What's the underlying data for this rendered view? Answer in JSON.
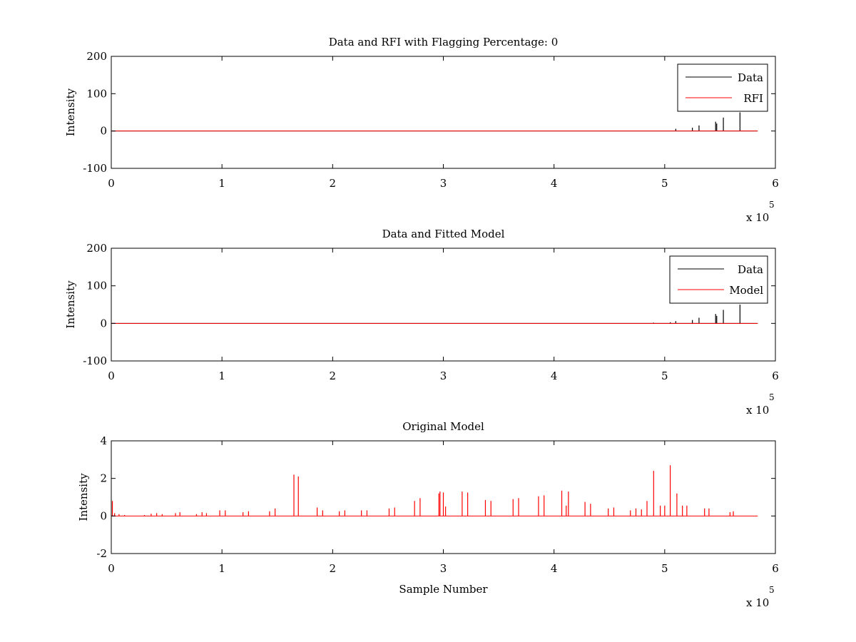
{
  "figure": {
    "background": "#ffffff"
  },
  "chart_data": [
    {
      "type": "line",
      "title": "Data and RFI with Flagging Percentage: 0",
      "xlabel": "",
      "ylabel": "Intensity",
      "xlim": [
        0,
        6
      ],
      "ylim": [
        -100,
        200
      ],
      "xticks": [
        "0",
        "1",
        "2",
        "3",
        "4",
        "5",
        "6"
      ],
      "yticks": [
        "-100",
        "0",
        "100",
        "200"
      ],
      "x_multiplier": {
        "base": "x 10",
        "exponent": "5"
      },
      "x_extent": [
        0,
        5.84
      ],
      "grid": false,
      "legend": "top-right",
      "series": [
        {
          "name": "Data",
          "color": "#000000",
          "baseline": 0,
          "spikes": [
            [
              5.1,
              6
            ],
            [
              5.25,
              9
            ],
            [
              5.31,
              15
            ],
            [
              5.46,
              25
            ],
            [
              5.47,
              20
            ],
            [
              5.53,
              36
            ],
            [
              5.68,
              50
            ]
          ]
        },
        {
          "name": "RFI",
          "color": "#ff0000",
          "baseline": 0,
          "spikes": []
        }
      ]
    },
    {
      "type": "line",
      "title": "Data and Fitted Model",
      "xlabel": "",
      "ylabel": "Intensity",
      "xlim": [
        0,
        6
      ],
      "ylim": [
        -100,
        200
      ],
      "xticks": [
        "0",
        "1",
        "2",
        "3",
        "4",
        "5",
        "6"
      ],
      "yticks": [
        "-100",
        "0",
        "100",
        "200"
      ],
      "x_multiplier": {
        "base": "x 10",
        "exponent": "5"
      },
      "x_extent": [
        0,
        5.84
      ],
      "grid": false,
      "legend": "top-right",
      "series": [
        {
          "name": "Data",
          "color": "#000000",
          "baseline": 0,
          "spikes": [
            [
              4.9,
              2
            ],
            [
              5.05,
              3
            ],
            [
              5.1,
              6
            ],
            [
              5.25,
              9
            ],
            [
              5.31,
              15
            ],
            [
              5.46,
              25
            ],
            [
              5.47,
              20
            ],
            [
              5.53,
              36
            ],
            [
              5.68,
              50
            ]
          ]
        },
        {
          "name": "Model",
          "color": "#ff0000",
          "baseline": 0,
          "spikes": []
        }
      ]
    },
    {
      "type": "line",
      "title": "Original Model",
      "xlabel": "Sample Number",
      "ylabel": "Intensity",
      "xlim": [
        0,
        6
      ],
      "ylim": [
        -2,
        4
      ],
      "xticks": [
        "0",
        "1",
        "2",
        "3",
        "4",
        "5",
        "6"
      ],
      "yticks": [
        "-2",
        "0",
        "2",
        "4"
      ],
      "x_multiplier": {
        "base": "x 10",
        "exponent": "5"
      },
      "x_extent": [
        0,
        5.84
      ],
      "grid": false,
      "series": [
        {
          "color": "#ff0000",
          "baseline": 0,
          "spikes": [
            [
              0.01,
              0.8
            ],
            [
              0.03,
              0.15
            ],
            [
              0.07,
              0.1
            ],
            [
              0.12,
              0.05
            ],
            [
              0.3,
              0.05
            ],
            [
              0.36,
              0.12
            ],
            [
              0.41,
              0.15
            ],
            [
              0.46,
              0.1
            ],
            [
              0.58,
              0.15
            ],
            [
              0.62,
              0.2
            ],
            [
              0.77,
              0.1
            ],
            [
              0.82,
              0.2
            ],
            [
              0.86,
              0.15
            ],
            [
              0.98,
              0.3
            ],
            [
              1.03,
              0.3
            ],
            [
              1.19,
              0.2
            ],
            [
              1.24,
              0.25
            ],
            [
              1.43,
              0.25
            ],
            [
              1.48,
              0.4
            ],
            [
              1.65,
              2.2
            ],
            [
              1.69,
              2.1
            ],
            [
              1.86,
              0.45
            ],
            [
              1.91,
              0.3
            ],
            [
              2.06,
              0.25
            ],
            [
              2.11,
              0.3
            ],
            [
              2.26,
              0.3
            ],
            [
              2.31,
              0.3
            ],
            [
              2.51,
              0.4
            ],
            [
              2.56,
              0.45
            ],
            [
              2.74,
              0.8
            ],
            [
              2.79,
              0.95
            ],
            [
              2.96,
              1.2
            ],
            [
              2.97,
              1.3
            ],
            [
              3.0,
              1.25
            ],
            [
              3.02,
              0.5
            ],
            [
              3.17,
              1.3
            ],
            [
              3.22,
              1.25
            ],
            [
              3.38,
              0.85
            ],
            [
              3.43,
              0.8
            ],
            [
              3.63,
              0.9
            ],
            [
              3.68,
              0.95
            ],
            [
              3.86,
              1.05
            ],
            [
              3.91,
              1.1
            ],
            [
              4.07,
              1.35
            ],
            [
              4.11,
              0.55
            ],
            [
              4.13,
              1.3
            ],
            [
              4.28,
              0.75
            ],
            [
              4.33,
              0.65
            ],
            [
              4.49,
              0.4
            ],
            [
              4.54,
              0.45
            ],
            [
              4.69,
              0.3
            ],
            [
              4.74,
              0.4
            ],
            [
              4.79,
              0.35
            ],
            [
              4.84,
              0.8
            ],
            [
              4.9,
              2.4
            ],
            [
              4.96,
              0.55
            ],
            [
              5.0,
              0.55
            ],
            [
              5.05,
              2.7
            ],
            [
              5.11,
              1.2
            ],
            [
              5.16,
              0.55
            ],
            [
              5.2,
              0.55
            ],
            [
              5.36,
              0.4
            ],
            [
              5.4,
              0.4
            ],
            [
              5.59,
              0.2
            ],
            [
              5.62,
              0.25
            ]
          ]
        }
      ]
    }
  ]
}
